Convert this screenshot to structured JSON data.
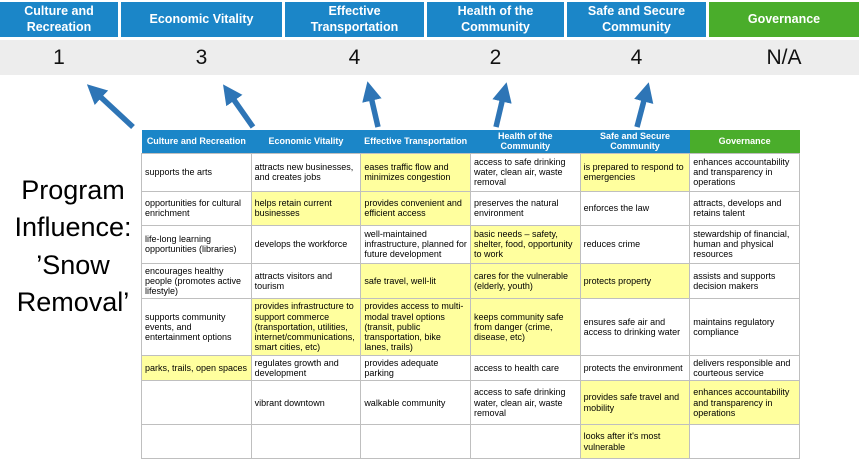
{
  "colors": {
    "header_blue": "#1b86c8",
    "header_green": "#4aad2b",
    "highlight_yellow": "#ffff9e",
    "score_band_gray": "#ededed",
    "arrow_blue": "#2e75b6",
    "table_border": "#bfbfbf"
  },
  "program_label": "Program Influence: ’Snow Removal’",
  "scoreboard": {
    "columns": [
      {
        "label": "Culture and Recreation",
        "score": "1",
        "theme": "blue"
      },
      {
        "label": "Economic Vitality",
        "score": "3",
        "theme": "blue"
      },
      {
        "label": "Effective Transportation",
        "score": "4",
        "theme": "blue"
      },
      {
        "label": "Health of the Community",
        "score": "2",
        "theme": "blue"
      },
      {
        "label": "Safe and Secure Community",
        "score": "4",
        "theme": "blue"
      },
      {
        "label": "Governance",
        "score": "N/A",
        "theme": "green"
      }
    ]
  },
  "table": {
    "headers": [
      {
        "label": "Culture and Recreation",
        "theme": "blue"
      },
      {
        "label": "Economic Vitality",
        "theme": "blue"
      },
      {
        "label": "Effective Transportation",
        "theme": "blue"
      },
      {
        "label": "Health of the Community",
        "theme": "blue"
      },
      {
        "label": "Safe and Secure Community",
        "theme": "blue"
      },
      {
        "label": "Governance",
        "theme": "green"
      }
    ],
    "rows": [
      [
        {
          "text": "supports the arts",
          "highlight": false
        },
        {
          "text": "attracts new businesses, and creates jobs",
          "highlight": false
        },
        {
          "text": "eases traffic flow and minimizes congestion",
          "highlight": true
        },
        {
          "text": "access to safe drinking water, clean air, waste removal",
          "highlight": false
        },
        {
          "text": "is prepared to respond to emergencies",
          "highlight": true
        },
        {
          "text": "enhances accountability and transparency in operations",
          "highlight": false
        }
      ],
      [
        {
          "text": "opportunities for cultural enrichment",
          "highlight": false
        },
        {
          "text": "helps retain current businesses",
          "highlight": true
        },
        {
          "text": "provides convenient and efficient access",
          "highlight": true
        },
        {
          "text": "preserves the natural environment",
          "highlight": false
        },
        {
          "text": "enforces the law",
          "highlight": false
        },
        {
          "text": "attracts, develops and retains talent",
          "highlight": false
        }
      ],
      [
        {
          "text": "life-long learning opportunities (libraries)",
          "highlight": false
        },
        {
          "text": "develops the workforce",
          "highlight": false
        },
        {
          "text": "well-maintained infrastructure, planned for future development",
          "highlight": false
        },
        {
          "text": "basic needs – safety, shelter, food, opportunity to work",
          "highlight": true
        },
        {
          "text": "reduces crime",
          "highlight": false
        },
        {
          "text": "stewardship of financial, human and physical resources",
          "highlight": false
        }
      ],
      [
        {
          "text": "encourages healthy people (promotes active lifestyle)",
          "highlight": false
        },
        {
          "text": "attracts visitors and tourism",
          "highlight": false
        },
        {
          "text": "safe travel, well-lit",
          "highlight": true
        },
        {
          "text": "cares for the vulnerable (elderly, youth)",
          "highlight": true
        },
        {
          "text": "protects property",
          "highlight": true
        },
        {
          "text": "assists and supports decision makers",
          "highlight": false
        }
      ],
      [
        {
          "text": "supports community events, and entertainment options",
          "highlight": false
        },
        {
          "text": "provides infrastructure to support commerce (transportation, utilities, internet/communications, smart cities, etc)",
          "highlight": true
        },
        {
          "text": "provides access to multi-modal travel options (transit, public transportation, bike lanes, trails)",
          "highlight": true
        },
        {
          "text": "keeps community safe from danger (crime, disease, etc)",
          "highlight": true
        },
        {
          "text": "ensures safe air and access to drinking water",
          "highlight": false
        },
        {
          "text": "maintains regulatory compliance",
          "highlight": false
        }
      ],
      [
        {
          "text": "parks, trails, open spaces",
          "highlight": true
        },
        {
          "text": "regulates growth and development",
          "highlight": false
        },
        {
          "text": "provides adequate parking",
          "highlight": false
        },
        {
          "text": "access to health care",
          "highlight": false
        },
        {
          "text": "protects the environment",
          "highlight": false
        },
        {
          "text": "delivers responsible and courteous service",
          "highlight": false
        }
      ],
      [
        {
          "text": "",
          "highlight": false
        },
        {
          "text": "vibrant downtown",
          "highlight": false
        },
        {
          "text": "walkable community",
          "highlight": false
        },
        {
          "text": "access to safe drinking water, clean air, waste removal",
          "highlight": false
        },
        {
          "text": "provides safe travel and mobility",
          "highlight": true
        },
        {
          "text": "enhances accountability and transparency in operations",
          "highlight": true
        }
      ],
      [
        {
          "text": "",
          "highlight": false
        },
        {
          "text": "",
          "highlight": false
        },
        {
          "text": "",
          "highlight": false
        },
        {
          "text": "",
          "highlight": false
        },
        {
          "text": "looks after it's most vulnerable",
          "highlight": true
        },
        {
          "text": "",
          "highlight": false
        }
      ]
    ]
  }
}
